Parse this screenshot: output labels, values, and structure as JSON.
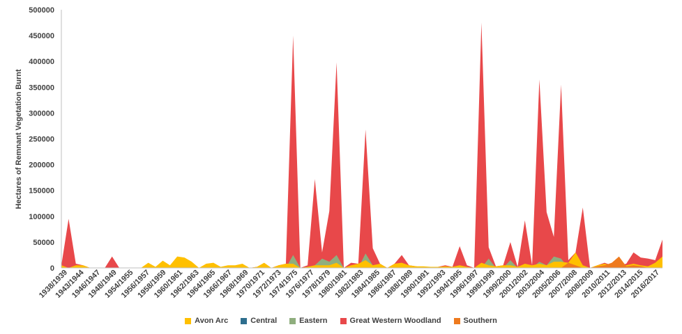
{
  "chart_data": {
    "type": "area",
    "title": "",
    "ylabel": "Hectares of Remnant Vegetation Burnt",
    "xlabel": "",
    "ylim": [
      0,
      500000
    ],
    "yticks": [
      0,
      50000,
      100000,
      150000,
      200000,
      250000,
      300000,
      350000,
      400000,
      450000,
      500000
    ],
    "ytick_labels": [
      "0",
      "50000",
      "100000",
      "150000",
      "200000",
      "250000",
      "300000",
      "350000",
      "400000",
      "450000",
      "500000"
    ],
    "x_tick_labels": [
      "1938/1939",
      "1943/1944",
      "1946/1947",
      "1948/1949",
      "1954/1955",
      "1956/1957",
      "1958/1959",
      "1960/1961",
      "1962/1963",
      "1964/1965",
      "1966/1967",
      "1968/1969",
      "1970/1971",
      "1972/1973",
      "1974/1975",
      "1976/1977",
      "1978/1979",
      "1980/1981",
      "1982/1983",
      "1984/1985",
      "1986/1987",
      "1988/1989",
      "1990/1991",
      "1992/1993",
      "1994/1995",
      "1996/1997",
      "1998/1999",
      "1999/2000",
      "2001/2002",
      "2003/2004",
      "2005/2006",
      "2007/2008",
      "2008/2009",
      "2010/2011",
      "2012/2013",
      "2014/2015",
      "2016/2017"
    ],
    "legend_position": "bottom",
    "grid": false,
    "colors": {
      "Avon Arc": "#FFC000",
      "Central": "#2E6E8E",
      "Eastern": "#8FAE7E",
      "Great Western Woodland": "#E8484A",
      "Southern": "#EE7A1E"
    },
    "legend": [
      "Avon Arc",
      "Central",
      "Eastern",
      "Great Western Woodland",
      "Southern"
    ],
    "series": [
      {
        "name": "Great Western Woodland",
        "values": [
          5000,
          95000,
          8000,
          5000,
          0,
          0,
          0,
          22000,
          0,
          0,
          0,
          0,
          5000,
          0,
          8000,
          0,
          0,
          0,
          0,
          0,
          0,
          0,
          0,
          0,
          0,
          0,
          0,
          2000,
          5000,
          0,
          5000,
          8000,
          450000,
          0,
          5000,
          172000,
          30000,
          110000,
          398000,
          0,
          10000,
          8000,
          268000,
          38000,
          8000,
          0,
          8000,
          25000,
          5000,
          3000,
          0,
          2000,
          2000,
          5000,
          2000,
          42000,
          5000,
          0,
          475000,
          40000,
          3000,
          5000,
          50000,
          2000,
          92000,
          5000,
          365000,
          108000,
          60000,
          355000,
          15000,
          30000,
          117000,
          0,
          5000,
          10000,
          5000,
          5000,
          8000,
          30000,
          20000,
          18000,
          15000,
          55000
        ]
      },
      {
        "name": "Eastern",
        "values": [
          0,
          0,
          0,
          0,
          0,
          0,
          0,
          0,
          0,
          0,
          0,
          0,
          0,
          0,
          0,
          0,
          0,
          0,
          0,
          0,
          0,
          0,
          0,
          0,
          0,
          0,
          0,
          0,
          0,
          0,
          0,
          0,
          25000,
          0,
          0,
          5000,
          18000,
          12000,
          25000,
          0,
          0,
          0,
          28000,
          5000,
          0,
          0,
          0,
          3000,
          0,
          0,
          0,
          0,
          0,
          0,
          0,
          0,
          0,
          0,
          0,
          18000,
          0,
          0,
          15000,
          0,
          5000,
          0,
          12000,
          5000,
          22000,
          18000,
          0,
          0,
          0,
          0,
          0,
          0,
          0,
          0,
          0,
          0,
          0,
          0,
          0,
          0
        ]
      },
      {
        "name": "Central",
        "values": [
          0,
          0,
          0,
          0,
          0,
          0,
          0,
          0,
          0,
          0,
          0,
          0,
          0,
          0,
          0,
          0,
          0,
          0,
          0,
          0,
          0,
          0,
          0,
          0,
          0,
          0,
          0,
          0,
          0,
          0,
          0,
          0,
          0,
          0,
          0,
          0,
          0,
          0,
          0,
          0,
          0,
          0,
          0,
          0,
          0,
          0,
          0,
          0,
          0,
          0,
          0,
          0,
          0,
          0,
          0,
          0,
          0,
          0,
          0,
          5000,
          0,
          0,
          3000,
          0,
          0,
          0,
          0,
          0,
          0,
          0,
          0,
          0,
          0,
          0,
          0,
          0,
          0,
          0,
          0,
          0,
          0,
          0,
          0,
          0
        ]
      },
      {
        "name": "Avon Arc",
        "values": [
          5000,
          0,
          5000,
          5000,
          0,
          0,
          0,
          0,
          0,
          0,
          0,
          0,
          10000,
          2000,
          14000,
          5000,
          22000,
          20000,
          12000,
          0,
          8000,
          10000,
          2000,
          5000,
          5000,
          8000,
          0,
          2000,
          10000,
          0,
          5000,
          8000,
          8000,
          0,
          2000,
          5000,
          5000,
          5000,
          10000,
          0,
          5000,
          8000,
          15000,
          5000,
          8000,
          0,
          8000,
          10000,
          5000,
          3000,
          3000,
          2000,
          2000,
          3000,
          2000,
          5000,
          2000,
          0,
          10000,
          5000,
          3000,
          5000,
          5000,
          2000,
          8000,
          5000,
          8000,
          5000,
          12000,
          12000,
          10000,
          30000,
          5000,
          0,
          5000,
          8000,
          5000,
          3000,
          5000,
          8000,
          5000,
          3000,
          10000,
          22000
        ]
      },
      {
        "name": "Southern",
        "values": [
          0,
          0,
          0,
          0,
          0,
          0,
          0,
          0,
          0,
          0,
          0,
          0,
          0,
          0,
          0,
          0,
          0,
          0,
          0,
          0,
          0,
          0,
          0,
          0,
          0,
          0,
          0,
          0,
          0,
          0,
          0,
          0,
          0,
          0,
          0,
          0,
          0,
          0,
          0,
          0,
          0,
          0,
          0,
          0,
          0,
          0,
          0,
          0,
          0,
          0,
          0,
          0,
          0,
          0,
          0,
          0,
          0,
          0,
          0,
          0,
          0,
          0,
          0,
          0,
          0,
          0,
          0,
          0,
          0,
          0,
          10000,
          5000,
          0,
          0,
          3000,
          5000,
          10000,
          22000,
          3000,
          5000,
          3000,
          0,
          0,
          0
        ]
      }
    ]
  }
}
